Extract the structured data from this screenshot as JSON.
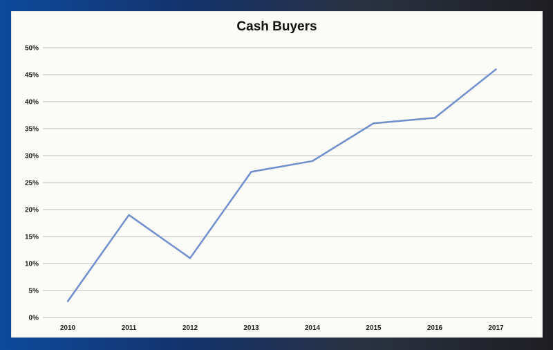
{
  "chart_data": {
    "type": "line",
    "title": "Cash Buyers",
    "xlabel": "",
    "ylabel": "",
    "categories": [
      "2010",
      "2011",
      "2012",
      "2013",
      "2014",
      "2015",
      "2016",
      "2017"
    ],
    "values": [
      3,
      19,
      11,
      27,
      29,
      36,
      37,
      46
    ],
    "ylim": [
      0,
      50
    ],
    "yticks": [
      "0%",
      "5%",
      "10%",
      "15%",
      "20%",
      "25%",
      "30%",
      "35%",
      "40%",
      "45%",
      "50%"
    ],
    "grid": true,
    "legend": "none",
    "line_color": "#6f8fcc",
    "grid_color": "#bdbdbd"
  }
}
